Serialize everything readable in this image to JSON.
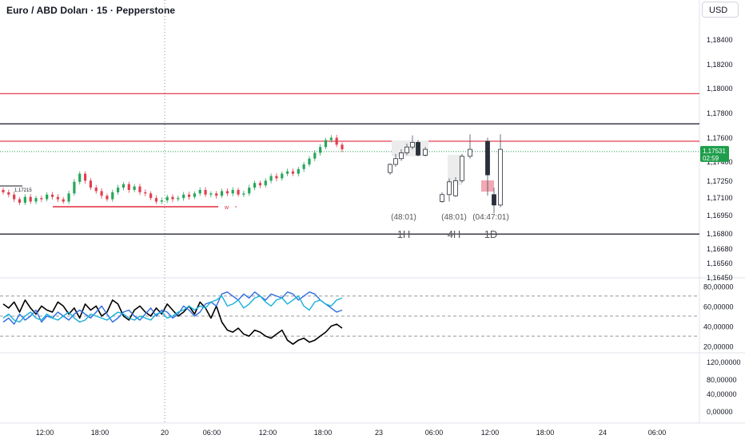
{
  "header": {
    "title": "Euro / ABD Doları · 15 · Pepperstone",
    "currency": "USD"
  },
  "colors": {
    "up": "#26a65b",
    "down": "#e04050",
    "level_red": "#e02a3c",
    "level_black": "#131722",
    "price_tag": "#1e9e4a",
    "line_black": "#000000",
    "line_blue": "#2f6fe0",
    "line_cyan": "#19b0d8"
  },
  "chart_data": [
    {
      "type": "candlestick",
      "title": "Euro / ABD Doları · 15 · Pepperstone",
      "price_axis_labels": [
        "1,18400",
        "1,18200",
        "1,18000",
        "1,17800",
        "1,17600",
        "1,17400",
        "1,17250",
        "1,17100",
        "1,16950",
        "1,16800",
        "1,16680",
        "1,16560",
        "1,16450"
      ],
      "time_axis_labels": [
        "12:00",
        "18:00",
        "20",
        "06:00",
        "12:00",
        "18:00",
        "23",
        "06:00",
        "12:00",
        "18:00",
        "24",
        "06:00"
      ],
      "ylim": [
        1.1645,
        1.185
      ],
      "current_price": {
        "value": "1,17531",
        "countdown": "02:59"
      },
      "horizontal_levels": [
        {
          "price": 1.1803,
          "color": "red"
        },
        {
          "price": 1.1777,
          "color": "black"
        },
        {
          "price": 1.1762,
          "color": "red"
        },
        {
          "price": 1.1682,
          "color": "black"
        }
      ],
      "small_level_labels": [
        "1,17215"
      ],
      "marker_label": "w",
      "timeframe_boxes": [
        {
          "label": "1H",
          "countdown": "(48:01)"
        },
        {
          "label": "4H",
          "countdown": "(48:01)"
        },
        {
          "label": "1D",
          "countdown": "(04:47:01)"
        }
      ],
      "price_path": [
        1.1718,
        1.1716,
        1.1712,
        1.1709,
        1.1714,
        1.171,
        1.1713,
        1.1712,
        1.1716,
        1.1714,
        1.1712,
        1.171,
        1.1717,
        1.1727,
        1.1734,
        1.1728,
        1.1722,
        1.1719,
        1.1715,
        1.1712,
        1.1718,
        1.1722,
        1.1725,
        1.172,
        1.1723,
        1.1718,
        1.1717,
        1.1713,
        1.171,
        1.1711,
        1.1714,
        1.1712,
        1.1713,
        1.1716,
        1.1714,
        1.1717,
        1.172,
        1.1716,
        1.1717,
        1.1715,
        1.1719,
        1.1717,
        1.172,
        1.1716,
        1.1717,
        1.1722,
        1.1726,
        1.1724,
        1.1728,
        1.1732,
        1.173,
        1.1734,
        1.1736,
        1.1734,
        1.1738,
        1.1742,
        1.1747,
        1.1752,
        1.1757,
        1.1763,
        1.1765,
        1.1759,
        1.1755
      ]
    },
    {
      "type": "line",
      "ylim": [
        15,
        85
      ],
      "axis_labels": [
        "80,00000",
        "60,00000",
        "40,00000",
        "20,00000"
      ],
      "reference_lines": [
        70,
        50,
        30
      ],
      "series": [
        {
          "values": [
            62,
            58,
            64,
            54,
            66,
            58,
            52,
            60,
            56,
            54,
            64,
            60,
            52,
            58,
            48,
            62,
            56,
            60,
            50,
            54,
            66,
            62,
            50,
            46,
            56,
            60,
            54,
            50,
            58,
            52,
            62,
            56,
            50,
            54,
            60,
            52,
            64,
            58,
            48,
            60,
            44,
            36,
            34,
            38,
            32,
            30,
            36,
            34,
            30,
            28,
            32,
            36,
            26,
            22,
            26,
            28,
            24,
            26,
            30,
            34,
            40,
            42,
            38
          ]
        },
        {
          "values": [
            44,
            48,
            42,
            52,
            46,
            50,
            56,
            44,
            50,
            48,
            54,
            50,
            46,
            52,
            56,
            52,
            48,
            54,
            60,
            52,
            44,
            48,
            54,
            56,
            50,
            46,
            52,
            58,
            50,
            56,
            54,
            48,
            52,
            60,
            56,
            50,
            54,
            62,
            64,
            60,
            72,
            74,
            70,
            66,
            72,
            68,
            74,
            70,
            66,
            72,
            70,
            68,
            74,
            72,
            66,
            70,
            74,
            72,
            66,
            62,
            58,
            54,
            56
          ]
        },
        {
          "values": [
            48,
            52,
            46,
            44,
            50,
            54,
            48,
            46,
            52,
            48,
            46,
            50,
            54,
            48,
            44,
            46,
            52,
            50,
            48,
            46,
            50,
            54,
            52,
            48,
            46,
            50,
            48,
            46,
            52,
            54,
            48,
            50,
            54,
            56,
            60,
            56,
            60,
            58,
            64,
            66,
            70,
            60,
            62,
            66,
            58,
            62,
            68,
            70,
            64,
            60,
            66,
            68,
            62,
            66,
            70,
            60,
            56,
            64,
            66,
            62,
            60,
            66,
            68
          ]
        }
      ]
    },
    {
      "type": "line",
      "axis_labels": [
        "120,00000",
        "80,00000",
        "40,00000",
        "0,00000"
      ],
      "series": []
    }
  ]
}
